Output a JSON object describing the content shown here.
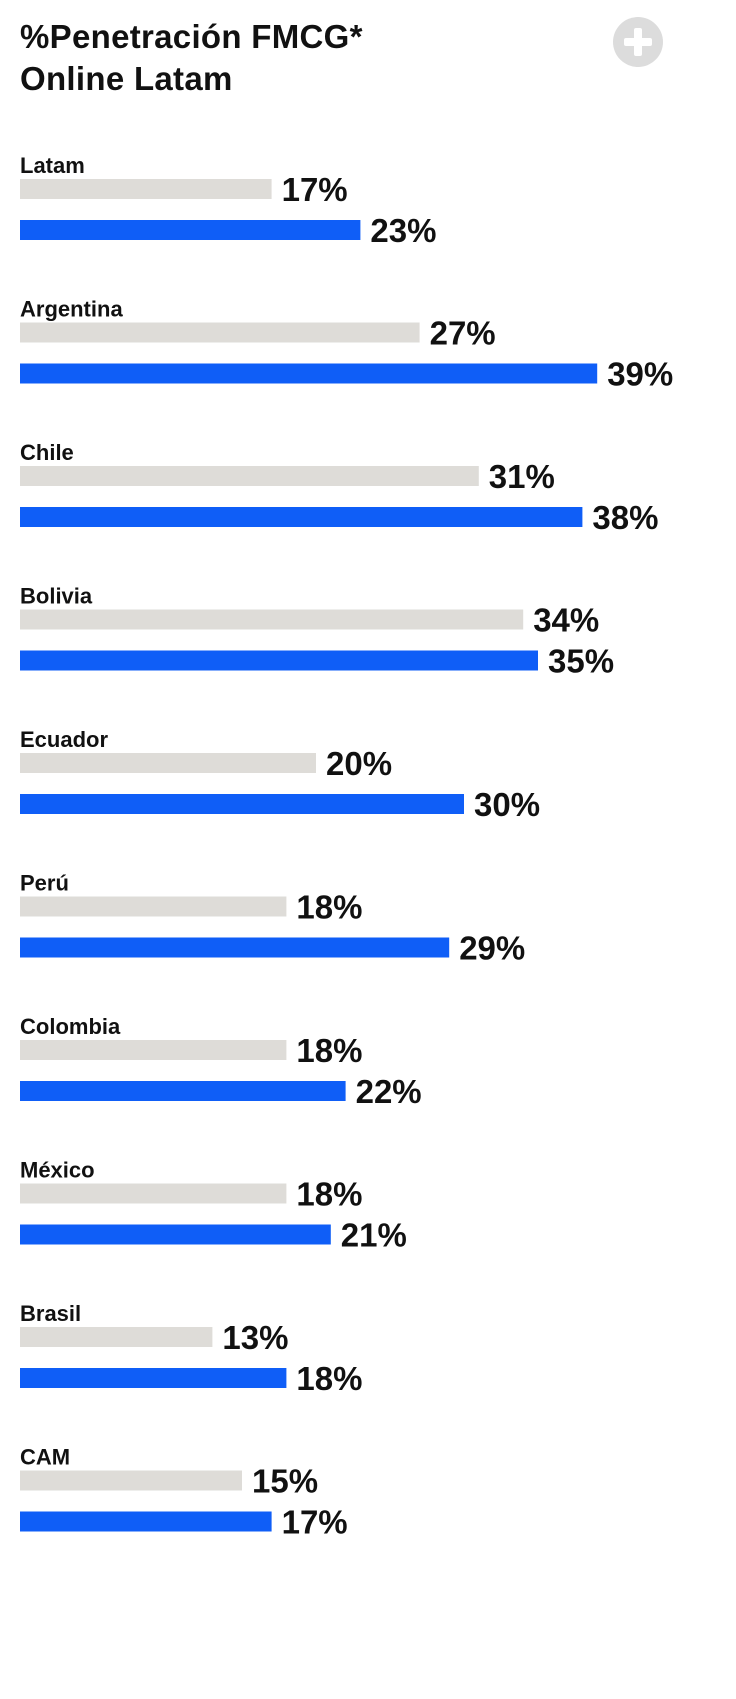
{
  "header": {
    "title_line1": "%Penetración FMCG*",
    "title_line2": "Online Latam",
    "expand_icon": "plus-circle-icon"
  },
  "colors": {
    "series_previous": "#dedcd8",
    "series_current": "#0f5ef7",
    "text": "#111111"
  },
  "chart_data": {
    "type": "bar",
    "orientation": "horizontal",
    "title": "%Penetración FMCG* Online Latam",
    "categories": [
      "Latam",
      "Argentina",
      "Chile",
      "Bolivia",
      "Ecuador",
      "Perú",
      "Colombia",
      "México",
      "Brasil",
      "CAM"
    ],
    "series": [
      {
        "color": "#dedcd8",
        "values": [
          17,
          27,
          31,
          34,
          20,
          18,
          18,
          18,
          13,
          15
        ],
        "labels": [
          "17%",
          "27%",
          "31%",
          "34%",
          "20%",
          "18%",
          "18%",
          "18%",
          "13%",
          "15%"
        ]
      },
      {
        "color": "#0f5ef7",
        "values": [
          23,
          39,
          38,
          35,
          30,
          29,
          22,
          21,
          18,
          17
        ],
        "labels": [
          "23%",
          "39%",
          "38%",
          "35%",
          "30%",
          "29%",
          "22%",
          "21%",
          "18%",
          "17%"
        ]
      }
    ],
    "unit": "%",
    "xlabel": "",
    "ylabel": "",
    "xlim": [
      0,
      40
    ],
    "grid": false,
    "legend": "none"
  }
}
